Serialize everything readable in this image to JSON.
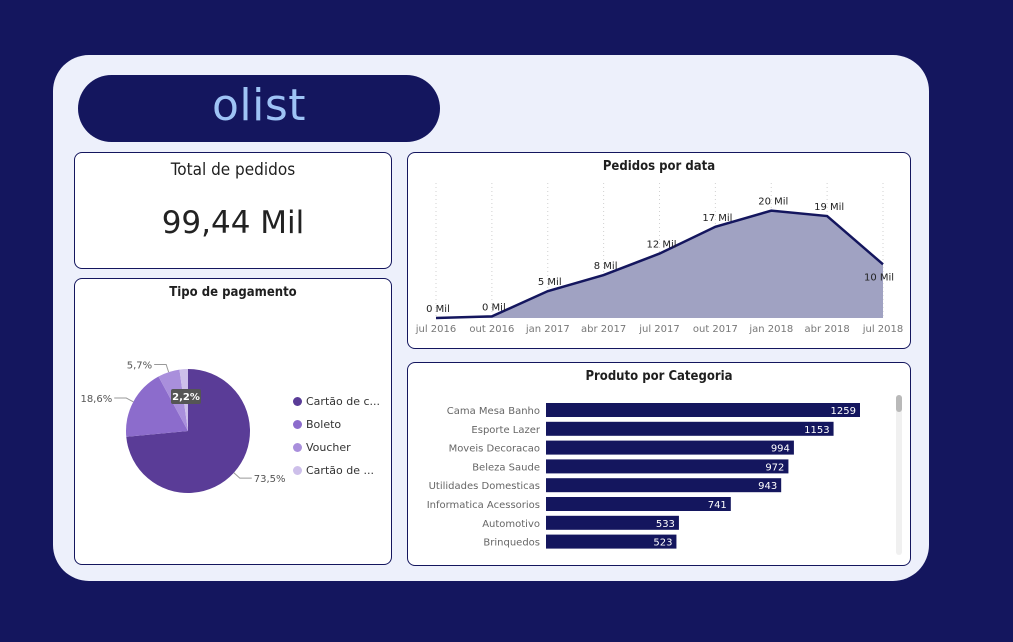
{
  "logo": {
    "text": "olist"
  },
  "kpi": {
    "title": "Total de pedidos",
    "value": "99,44 Mil"
  },
  "colors": {
    "background": "#14165e",
    "panel": "#edf0fb",
    "line": "#14165e",
    "area": "#a0a2c2",
    "bar": "#14165e"
  },
  "chart_data": [
    {
      "id": "payment",
      "type": "pie",
      "title": "Tipo de pagamento",
      "slices": [
        {
          "name": "Cartão de c...",
          "value": 73.5,
          "label": "73,5%",
          "color": "#5a3c97"
        },
        {
          "name": "Boleto",
          "value": 18.6,
          "label": "18,6%",
          "color": "#8c6ccc"
        },
        {
          "name": "Voucher",
          "value": 5.7,
          "label": "5,7%",
          "color": "#a98fdc"
        },
        {
          "name": "Cartão de ...",
          "value": 2.2,
          "label": "2,2%",
          "color": "#cdbfea"
        }
      ],
      "legend_position": "right"
    },
    {
      "id": "orders_by_date",
      "type": "area",
      "title": "Pedidos por data",
      "x": [
        "jul 2016",
        "out 2016",
        "jan 2017",
        "abr 2017",
        "jul 2017",
        "out 2017",
        "jan 2018",
        "abr 2018",
        "jul 2018"
      ],
      "x_ticks": [
        "jul 2016",
        "out 2016",
        "jan 2017",
        "abr 2017",
        "jul 2017",
        "out 2017",
        "jan 2018",
        "abr 2018",
        "jul 2018"
      ],
      "values": [
        0,
        0.3,
        5,
        8,
        12,
        17,
        20,
        19,
        10
      ],
      "data_labels": [
        "0 Mil",
        "0 Mil",
        "5 Mil",
        "8 Mil",
        "12 Mil",
        "17 Mil",
        "20 Mil",
        "19 Mil",
        "10 Mil"
      ],
      "ylim": [
        0,
        24
      ],
      "grid": "vertical-dotted"
    },
    {
      "id": "product_by_category",
      "type": "bar",
      "orientation": "horizontal",
      "title": "Produto por Categoria",
      "categories": [
        "Cama Mesa Banho",
        "Esporte Lazer",
        "Moveis Decoracao",
        "Beleza Saude",
        "Utilidades Domesticas",
        "Informatica Acessorios",
        "Automotivo",
        "Brinquedos"
      ],
      "values": [
        1259,
        1153,
        994,
        972,
        943,
        741,
        533,
        523
      ],
      "xlim": [
        0,
        1259
      ]
    }
  ]
}
